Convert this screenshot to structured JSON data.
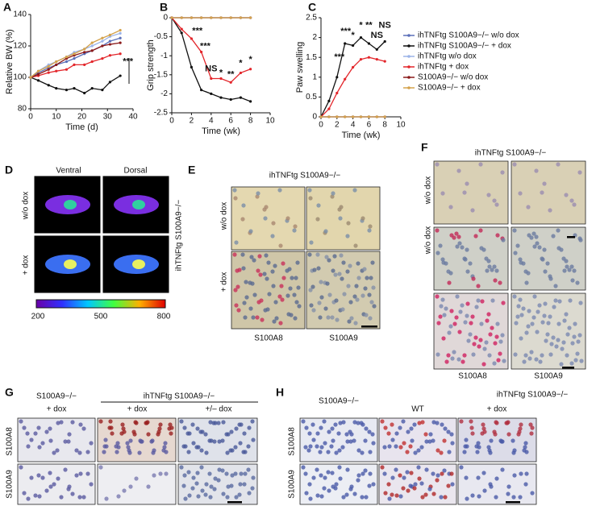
{
  "chart_data": [
    {
      "type": "line",
      "label": "A",
      "xlabel": "Time (d)",
      "ylabel": "Relative BW (%)",
      "x": [
        0,
        3,
        7,
        10,
        14,
        17,
        21,
        24,
        28,
        31,
        35
      ],
      "xlim": [
        0,
        40
      ],
      "xticks": [
        0,
        10,
        20,
        30,
        40
      ],
      "ylim": [
        80,
        140
      ],
      "yticks": [
        80,
        100,
        120,
        140
      ],
      "series": [
        {
          "name": "ihTNFtg S100A9−/− w/o dox",
          "color": "#5b6fb8",
          "values": [
            100,
            103,
            106,
            108,
            110,
            112,
            115,
            117,
            120,
            123,
            125
          ]
        },
        {
          "name": "ihTNFtg S100A9−/− + dox",
          "color": "#111111",
          "values": [
            100,
            98,
            95,
            93,
            92,
            93,
            90,
            93,
            92,
            97,
            101
          ]
        },
        {
          "name": "ihTNFtg w/o dox",
          "color": "#9bb3e8",
          "values": [
            100,
            104,
            108,
            110,
            113,
            116,
            118,
            120,
            123,
            126,
            128
          ]
        },
        {
          "name": "ihTNFtg + dox",
          "color": "#e3262b",
          "values": [
            100,
            101,
            103,
            104,
            105,
            108,
            108,
            110,
            112,
            114,
            115
          ]
        },
        {
          "name": "S100A9−/− w/o dox",
          "color": "#8b1a1a",
          "values": [
            100,
            102,
            105,
            108,
            112,
            114,
            116,
            117,
            120,
            121,
            122
          ]
        },
        {
          "name": "S100A9−/− + dox",
          "color": "#d4a24c",
          "values": [
            100,
            104,
            107,
            110,
            113,
            115,
            118,
            122,
            125,
            127,
            130
          ]
        }
      ],
      "annotations": [
        {
          "text": "***",
          "x": 38,
          "y": 110
        }
      ]
    },
    {
      "type": "line",
      "label": "B",
      "xlabel": "Time (wk)",
      "ylabel": "Grip strength",
      "x": [
        0,
        1,
        2,
        3,
        4,
        5,
        6,
        7,
        8
      ],
      "xlim": [
        0,
        10
      ],
      "xticks": [
        0,
        2,
        4,
        6,
        8,
        10
      ],
      "ylim": [
        -2.5,
        0
      ],
      "yticks": [
        0,
        -0.5,
        -1.0,
        -1.5,
        -2.0,
        -2.5
      ],
      "series": [
        {
          "color": "#5b6fb8",
          "values": [
            0,
            0,
            0,
            0,
            0,
            0,
            0,
            0,
            0
          ]
        },
        {
          "color": "#111111",
          "values": [
            0,
            -0.4,
            -1.3,
            -1.9,
            -2.0,
            -2.1,
            -2.15,
            -2.1,
            -2.2
          ]
        },
        {
          "color": "#9bb3e8",
          "values": [
            0,
            0,
            0,
            0,
            0,
            0,
            0,
            0,
            0
          ]
        },
        {
          "color": "#e3262b",
          "values": [
            0,
            -0.3,
            -0.55,
            -0.9,
            -1.6,
            -1.6,
            -1.7,
            -1.45,
            -1.35
          ]
        },
        {
          "color": "#8b1a1a",
          "values": [
            0,
            0,
            0,
            0,
            0,
            0,
            0,
            0,
            0
          ]
        },
        {
          "color": "#d4a24c",
          "values": [
            0,
            0,
            0,
            0,
            0,
            0,
            0,
            0,
            0
          ]
        }
      ],
      "annotations": [
        {
          "text": "***",
          "x": 2.6,
          "y": -0.35
        },
        {
          "text": "***",
          "x": 3.4,
          "y": -0.75
        },
        {
          "text": "NS",
          "x": 4,
          "y": -1.35
        },
        {
          "text": "*",
          "x": 5,
          "y": -1.45
        },
        {
          "text": "**",
          "x": 6,
          "y": -1.5
        },
        {
          "text": "*",
          "x": 7,
          "y": -1.2
        },
        {
          "text": "*",
          "x": 8,
          "y": -1.1
        }
      ]
    },
    {
      "type": "line",
      "label": "C",
      "xlabel": "Time (wk)",
      "ylabel": "Paw swelling",
      "x": [
        0,
        1,
        2,
        3,
        4,
        5,
        6,
        7,
        8
      ],
      "xlim": [
        0,
        10
      ],
      "xticks": [
        0,
        2,
        4,
        6,
        8,
        10
      ],
      "ylim": [
        0,
        2.5
      ],
      "yticks": [
        0,
        0.5,
        1.0,
        1.5,
        2.0,
        2.5
      ],
      "series": [
        {
          "color": "#5b6fb8",
          "values": [
            0,
            0,
            0,
            0,
            0,
            0,
            0,
            0,
            0
          ]
        },
        {
          "color": "#111111",
          "values": [
            0,
            0.4,
            1.0,
            1.85,
            1.8,
            2.0,
            1.85,
            1.7,
            1.9
          ]
        },
        {
          "color": "#9bb3e8",
          "values": [
            0,
            0,
            0,
            0,
            0,
            0,
            0,
            0,
            0
          ]
        },
        {
          "color": "#e3262b",
          "values": [
            0,
            0.2,
            0.6,
            0.95,
            1.25,
            1.45,
            1.5,
            1.45,
            1.4
          ]
        },
        {
          "color": "#8b1a1a",
          "values": [
            0,
            0,
            0,
            0,
            0,
            0,
            0,
            0,
            0
          ]
        },
        {
          "color": "#d4a24c",
          "values": [
            0,
            0,
            0,
            0,
            0,
            0,
            0,
            0,
            0
          ]
        }
      ],
      "annotations": [
        {
          "text": "***",
          "x": 2.3,
          "y": 1.5
        },
        {
          "text": "***",
          "x": 3.1,
          "y": 2.15
        },
        {
          "text": "*",
          "x": 4,
          "y": 2.05
        },
        {
          "text": "*",
          "x": 5,
          "y": 2.3
        },
        {
          "text": "**",
          "x": 6,
          "y": 2.3
        },
        {
          "text": "NS",
          "x": 7,
          "y": 2.05
        },
        {
          "text": "NS",
          "x": 8,
          "y": 2.3
        }
      ]
    }
  ],
  "panels": {
    "D": {
      "label": "D",
      "columns": [
        "Ventral",
        "Dorsal"
      ],
      "rows": [
        "w/o dox",
        "+ dox"
      ],
      "side": "ihTNFtg S100A9−/−",
      "scale": [
        "200",
        "500",
        "800"
      ]
    },
    "E": {
      "label": "E",
      "title": "ihTNFtg S100A9−/−",
      "rows": [
        "w/o dox",
        "+ dox"
      ],
      "columns": [
        "S100A8",
        "S100A9"
      ]
    },
    "F": {
      "label": "F",
      "title": "ihTNFtg S100A9−/−",
      "rows": [
        "w/o dox",
        "w/o dox"
      ],
      "columns": [
        "S100A8",
        "S100A9"
      ]
    },
    "G": {
      "label": "G",
      "group1": "S100A9−/−",
      "group1_sub": "+ dox",
      "group2": "ihTNFtg S100A9−/−",
      "group2_subs": [
        "+ dox",
        "+/– dox"
      ],
      "rows": [
        "S100A8",
        "S100A9"
      ]
    },
    "H": {
      "label": "H",
      "columns": [
        "S100A9−/−",
        "WT"
      ],
      "group": "ihTNFtg S100A9−/−",
      "group_sub": "+ dox",
      "rows": [
        "S100A8",
        "S100A9"
      ]
    }
  }
}
